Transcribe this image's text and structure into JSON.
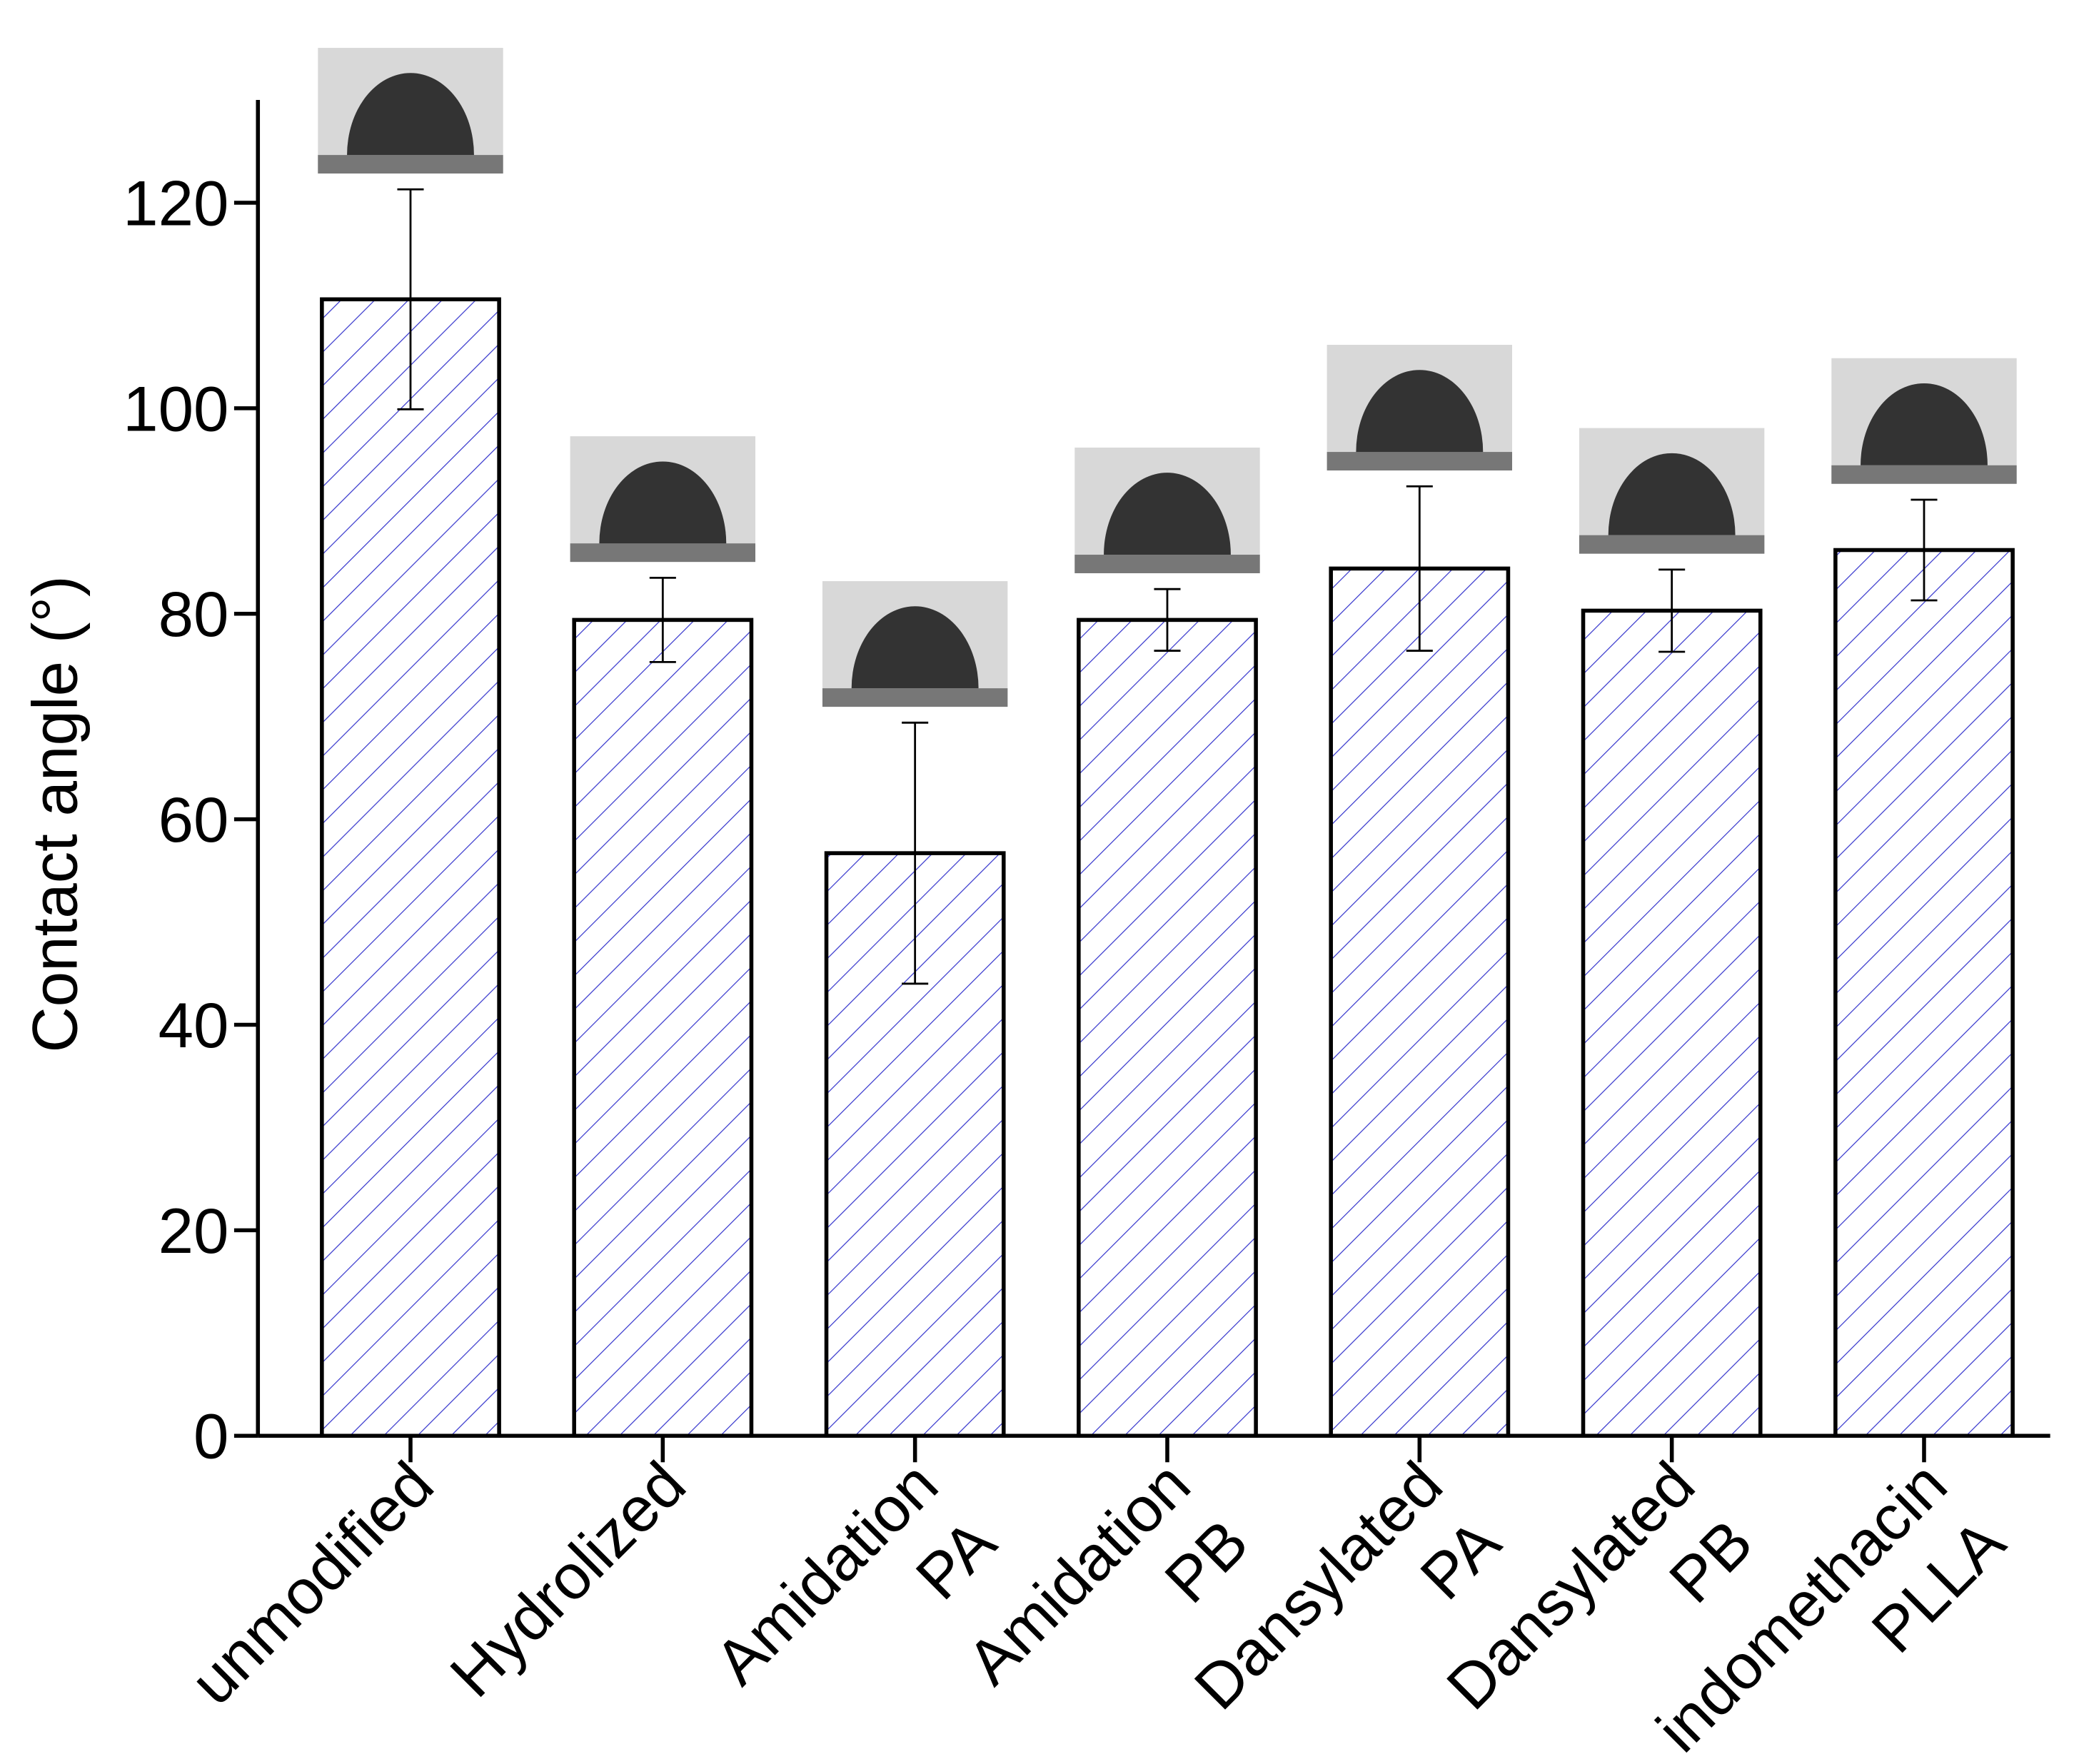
{
  "chart_data": {
    "type": "bar",
    "y_label": "Contact angle (°)",
    "categories": [
      [
        "unmodified"
      ],
      [
        "Hydrolized"
      ],
      [
        "Amidation",
        "PA"
      ],
      [
        "Amidation",
        "PB"
      ],
      [
        "Dansylated",
        "PA"
      ],
      [
        "Dansylated",
        "PB"
      ],
      [
        "indomethacin",
        "PLLA"
      ]
    ],
    "values": [
      110.6,
      79.4,
      56.7,
      79.4,
      84.4,
      80.3,
      86.2
    ],
    "errors": [
      10.7,
      4.1,
      12.7,
      3,
      8,
      4,
      4.9
    ],
    "color": "#3333cc",
    "ylim": [
      0,
      130
    ],
    "yticks": [
      0,
      20,
      40,
      60,
      80,
      100,
      120
    ]
  }
}
